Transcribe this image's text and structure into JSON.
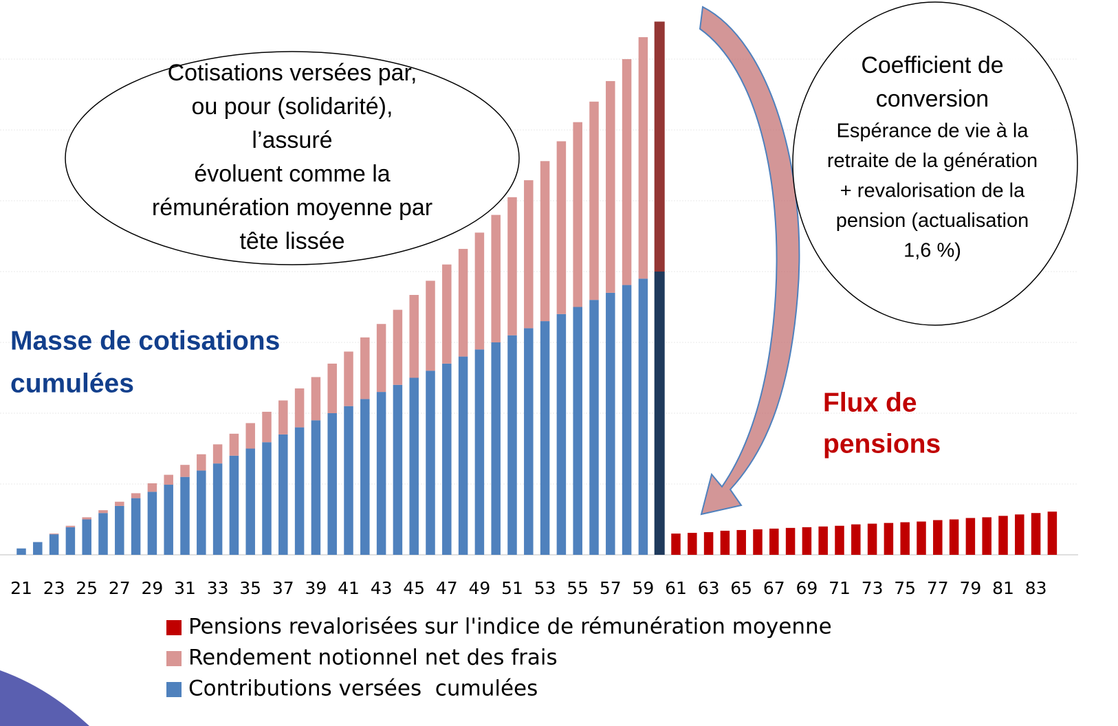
{
  "chart_data": {
    "type": "bar",
    "stacked": true,
    "categories": [
      "21",
      null,
      "23",
      null,
      "25",
      null,
      "27",
      null,
      "29",
      null,
      "31",
      null,
      "33",
      null,
      "35",
      null,
      "37",
      null,
      "39",
      null,
      "41",
      null,
      "43",
      null,
      "45",
      null,
      "47",
      null,
      "49",
      null,
      "51",
      null,
      "53",
      null,
      "55",
      null,
      "57",
      null,
      "59",
      null,
      "61",
      null,
      "63",
      null,
      "65",
      null,
      "67",
      null,
      "69",
      null,
      "71",
      null,
      "73",
      null,
      "75",
      null,
      "77",
      null,
      "79",
      null,
      "81",
      null,
      "83",
      null
    ],
    "series": [
      {
        "name": "Contributions versées  cumulées",
        "color": "#4f81bd",
        "highlight": {
          "index": 39,
          "color": "#1f3a5c"
        },
        "values": [
          0.09,
          0.18,
          0.29,
          0.39,
          0.5,
          0.59,
          0.69,
          0.8,
          0.89,
          0.99,
          1.1,
          1.19,
          1.29,
          1.4,
          1.5,
          1.59,
          1.7,
          1.8,
          1.9,
          2.0,
          2.1,
          2.2,
          2.3,
          2.4,
          2.5,
          2.6,
          2.7,
          2.8,
          2.9,
          3.0,
          3.1,
          3.2,
          3.3,
          3.4,
          3.5,
          3.6,
          3.7,
          3.81,
          3.9,
          4.0,
          null,
          null,
          null,
          null,
          null,
          null,
          null,
          null,
          null,
          null,
          null,
          null,
          null,
          null,
          null,
          null,
          null,
          null,
          null,
          null,
          null,
          null,
          null,
          null
        ]
      },
      {
        "name": "Rendement notionnel net des frais",
        "color": "#d99694",
        "highlight": {
          "index": 39,
          "color": "#943634"
        },
        "values": [
          0,
          0,
          0.01,
          0.02,
          0.03,
          0.04,
          0.06,
          0.07,
          0.12,
          0.14,
          0.17,
          0.23,
          0.27,
          0.31,
          0.36,
          0.43,
          0.48,
          0.55,
          0.61,
          0.7,
          0.77,
          0.87,
          0.96,
          1.06,
          1.17,
          1.27,
          1.4,
          1.52,
          1.65,
          1.8,
          1.95,
          2.09,
          2.26,
          2.44,
          2.61,
          2.8,
          2.99,
          3.19,
          3.41,
          3.53,
          null,
          null,
          null,
          null,
          null,
          null,
          null,
          null,
          null,
          null,
          null,
          null,
          null,
          null,
          null,
          null,
          null,
          null,
          null,
          null,
          null,
          null,
          null,
          null
        ]
      },
      {
        "name": "Pensions revalorisées sur l'indice de rémunération moyenne",
        "color": "#c00000",
        "values": [
          null,
          null,
          null,
          null,
          null,
          null,
          null,
          null,
          null,
          null,
          null,
          null,
          null,
          null,
          null,
          null,
          null,
          null,
          null,
          null,
          null,
          null,
          null,
          null,
          null,
          null,
          null,
          null,
          null,
          null,
          null,
          null,
          null,
          null,
          null,
          null,
          null,
          null,
          null,
          null,
          0.3,
          0.31,
          0.32,
          0.34,
          0.35,
          0.36,
          0.37,
          0.38,
          0.39,
          0.4,
          0.41,
          0.43,
          0.44,
          0.45,
          0.46,
          0.47,
          0.49,
          0.5,
          0.52,
          0.53,
          0.55,
          0.57,
          0.59,
          0.61
        ]
      }
    ],
    "ylim": [
      0,
      8
    ],
    "yticks": [
      0,
      1,
      2,
      3,
      4,
      5,
      6,
      7
    ],
    "grid": true,
    "legend_position": "bottom",
    "annotations": {
      "bubble_left": [
        "Cotisations versées par,",
        "ou pour (solidarité),",
        "l’assuré",
        "évoluent comme la",
        "rémunération moyenne par",
        "tête lissée"
      ],
      "bubble_right": [
        "Coefficient de",
        "conversion",
        "Espérance de vie à la",
        "retraite de la génération",
        "+ revalorisation de la",
        "pension (actualisation",
        "1,6 %)"
      ],
      "label_left": [
        "Masse de cotisations",
        "cumulées"
      ],
      "label_right": [
        "Flux de",
        "pensions"
      ]
    }
  }
}
